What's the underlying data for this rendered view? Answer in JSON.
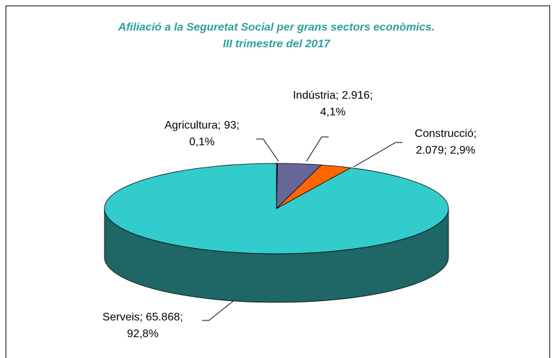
{
  "chart_data": {
    "type": "pie3d",
    "title": "Afiliació a la Seguretat Social per grans sectors econòmics.",
    "subtitle": "III trimestre del 2017",
    "categories": [
      "Agricultura",
      "Indústria",
      "Construcció",
      "Serveis"
    ],
    "values": [
      93,
      2916,
      2079,
      65868
    ],
    "value_labels": [
      "93",
      "2.916",
      "2.079",
      "65.868"
    ],
    "percentages": [
      0.1,
      4.1,
      2.9,
      92.8
    ],
    "percentage_labels": [
      "0,1%",
      "4,1%",
      "2,9%",
      "92,8%"
    ],
    "colors": [
      "#993366",
      "#666699",
      "#ff6600",
      "#33cccc"
    ],
    "side_colors": [
      "#662244",
      "#444466",
      "#aa4400",
      "#1f6666"
    ]
  }
}
